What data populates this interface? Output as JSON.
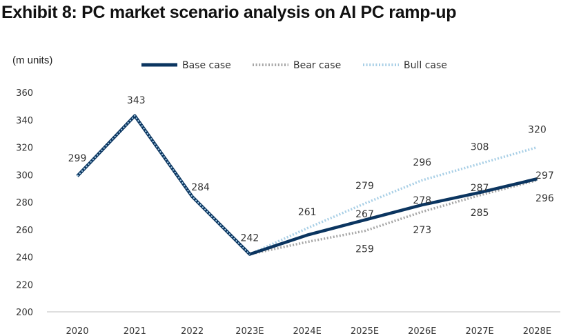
{
  "title": "Exhibit 8: PC market scenario analysis on AI PC ramp-up",
  "colors": {
    "base": "#0b3560",
    "bear": "#a6a6a6",
    "bull": "#a8cfe6",
    "axis": "#bfbfbf",
    "text": "#333333"
  },
  "chart_data": {
    "type": "line",
    "title": "Exhibit 8: PC market scenario analysis on AI PC ramp-up",
    "unit_label": "(m units)",
    "xlabel": "",
    "ylabel": "(m units)",
    "ylim": [
      200,
      360
    ],
    "yticks": [
      200,
      220,
      240,
      260,
      280,
      300,
      320,
      340,
      360
    ],
    "grid": false,
    "legend_position": "top",
    "categories": [
      "2020",
      "2021",
      "2022",
      "2023E",
      "2024E",
      "2025E",
      "2026E",
      "2027E",
      "2028E"
    ],
    "series": [
      {
        "key": "base",
        "name": "Base case",
        "values": [
          299,
          343,
          284,
          242,
          256,
          267,
          278,
          287,
          297
        ],
        "labels": [
          null,
          null,
          null,
          null,
          null,
          "267",
          "278",
          "287",
          "297"
        ]
      },
      {
        "key": "bear",
        "name": "Bear case",
        "values": [
          299,
          343,
          284,
          242,
          251,
          259,
          273,
          285,
          296
        ],
        "labels": [
          null,
          null,
          null,
          null,
          null,
          "259",
          "273",
          "285",
          "296"
        ]
      },
      {
        "key": "bull",
        "name": "Bull case",
        "values": [
          299,
          343,
          284,
          242,
          261,
          279,
          296,
          308,
          320
        ],
        "labels": [
          "299",
          "343",
          "284",
          "242",
          "261",
          "279",
          "296",
          "308",
          "320"
        ]
      }
    ]
  }
}
